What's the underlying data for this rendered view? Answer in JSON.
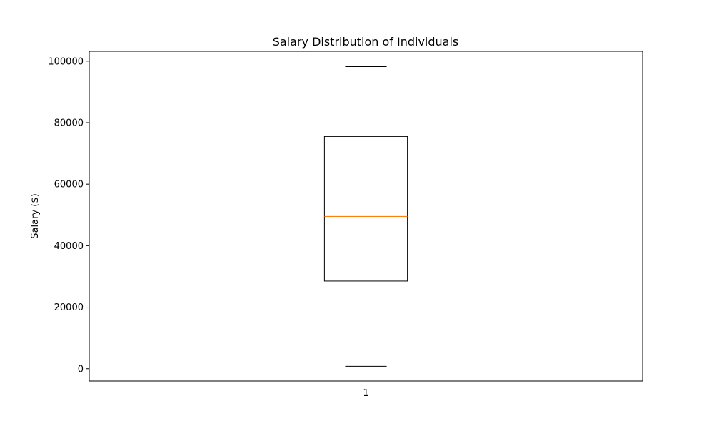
{
  "chart_data": {
    "type": "box",
    "title": "Salary Distribution of Individuals",
    "xlabel": "",
    "ylabel": "Salary ($)",
    "categories": [
      "1"
    ],
    "boxes": [
      {
        "category": "1",
        "whisker_low": 800,
        "q1": 28500,
        "median": 49500,
        "q3": 75500,
        "whisker_high": 98200
      }
    ],
    "ylim": [
      -4000,
      103200
    ],
    "yticks": [
      0,
      20000,
      40000,
      60000,
      80000,
      100000
    ],
    "ytick_labels": [
      "0",
      "20000",
      "40000",
      "60000",
      "80000",
      "100000"
    ],
    "grid": false,
    "colors": {
      "box": "#000000",
      "median": "#ff7f0e",
      "whisker": "#000000"
    }
  }
}
